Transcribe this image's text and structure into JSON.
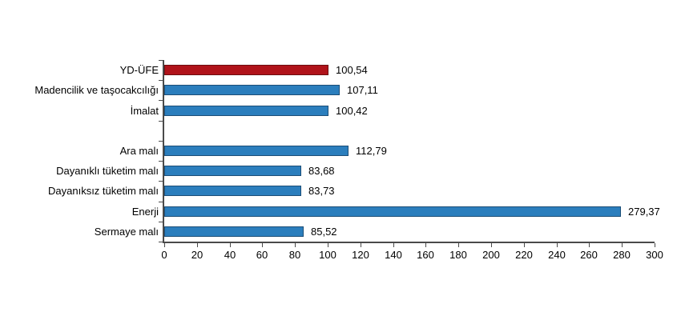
{
  "chart_data": {
    "type": "bar",
    "orientation": "horizontal",
    "title": "",
    "xlabel": "",
    "ylabel": "",
    "grid": false,
    "legend": "none",
    "xlim": [
      0,
      300
    ],
    "x_tick_step": 20,
    "x_tick_labels": [
      "0",
      "20",
      "40",
      "60",
      "80",
      "100",
      "120",
      "140",
      "160",
      "180",
      "200",
      "220",
      "240",
      "260",
      "280",
      "300"
    ],
    "categories": [
      "YD-ÜFE",
      "Madencilik ve taşocakcılığı",
      "İmalat",
      "Ara malı",
      "Dayanıklı tüketim malı",
      "Dayanıksız tüketim malı",
      "Enerji",
      "Sermaye malı"
    ],
    "values": [
      100.54,
      107.11,
      100.42,
      112.79,
      83.68,
      83.73,
      279.37,
      85.52
    ],
    "value_labels": [
      "100,54",
      "107,11",
      "100,42",
      "112,79",
      "83,68",
      "83,73",
      "279,37",
      "85,52"
    ],
    "gap_after_index": 2,
    "highlight_index": 0,
    "colors": {
      "highlight_fill": "#b0131a",
      "highlight_border": "#6e0d10",
      "default_fill": "#2b7ebd",
      "default_border": "#1c4e77",
      "axis": "#4a4a4a",
      "text": "#000000",
      "background": "#ffffff"
    }
  }
}
